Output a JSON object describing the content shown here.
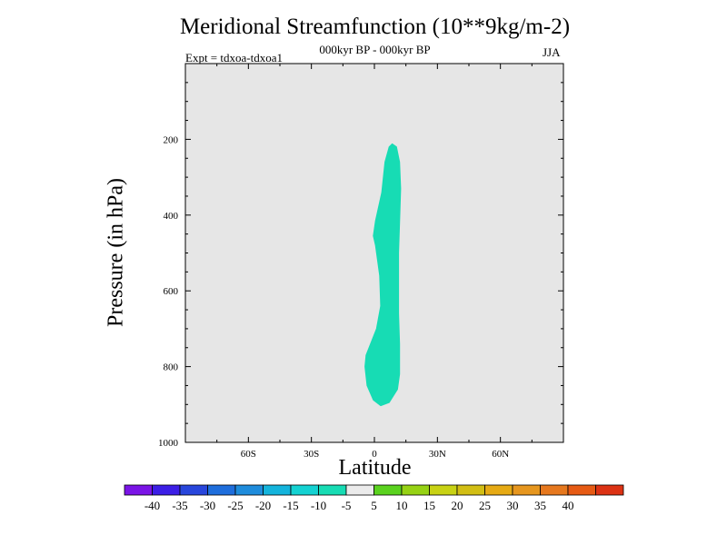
{
  "chart_data": {
    "type": "contour",
    "title": "Meridional Streamfunction (10**9kg/m-2)",
    "subtitle": "000kyr BP - 000kyr BP",
    "experiment_label": "Expt = tdxoa-tdxoa1",
    "season": "JJA",
    "xlabel": "Latitude",
    "ylabel": "Pressure (in hPa)",
    "x_range": [
      -90,
      90
    ],
    "y_range": [
      1000,
      0
    ],
    "y_inverted": true,
    "x_ticks": [
      {
        "value": -60,
        "label": "60S"
      },
      {
        "value": -30,
        "label": "30S"
      },
      {
        "value": 0,
        "label": "0"
      },
      {
        "value": 30,
        "label": "30N"
      },
      {
        "value": 60,
        "label": "60N"
      }
    ],
    "y_ticks": [
      {
        "value": 200,
        "label": "200"
      },
      {
        "value": 400,
        "label": "400"
      },
      {
        "value": 600,
        "label": "600"
      },
      {
        "value": 800,
        "label": "800"
      },
      {
        "value": 1000,
        "label": "1000"
      }
    ],
    "background_color": "#e6e6e6",
    "filled_region": {
      "level_range": [
        -10,
        -5
      ],
      "color": "#17dcb4",
      "outline": [
        {
          "lat": 8.5,
          "p": 212
        },
        {
          "lat": 10.5,
          "p": 220
        },
        {
          "lat": 12,
          "p": 260
        },
        {
          "lat": 12.5,
          "p": 330
        },
        {
          "lat": 12,
          "p": 420
        },
        {
          "lat": 11.5,
          "p": 500
        },
        {
          "lat": 11.5,
          "p": 580
        },
        {
          "lat": 11.5,
          "p": 660
        },
        {
          "lat": 12,
          "p": 740
        },
        {
          "lat": 12,
          "p": 820
        },
        {
          "lat": 11,
          "p": 860
        },
        {
          "lat": 7,
          "p": 895
        },
        {
          "lat": 3,
          "p": 903
        },
        {
          "lat": -0.5,
          "p": 888
        },
        {
          "lat": -3.5,
          "p": 850
        },
        {
          "lat": -4.5,
          "p": 800
        },
        {
          "lat": -4,
          "p": 770
        },
        {
          "lat": 1,
          "p": 700
        },
        {
          "lat": 3,
          "p": 640
        },
        {
          "lat": 2.5,
          "p": 560
        },
        {
          "lat": 0.5,
          "p": 480
        },
        {
          "lat": -0.5,
          "p": 455
        },
        {
          "lat": 0.5,
          "p": 415
        },
        {
          "lat": 3.5,
          "p": 340
        },
        {
          "lat": 5,
          "p": 260
        },
        {
          "lat": 7,
          "p": 220
        }
      ]
    },
    "colorbar": {
      "colors": [
        "#7a14e6",
        "#3c1ee6",
        "#2846dc",
        "#1e6edc",
        "#1e8cdc",
        "#14b4dc",
        "#14d2d2",
        "#17dcb4",
        "#ebebeb",
        "#5ad21e",
        "#96d214",
        "#c8d214",
        "#d2be14",
        "#e6aa14",
        "#e6961e",
        "#e6781e",
        "#e65a14",
        "#dc3214"
      ],
      "labels": [
        "-40",
        "-35",
        "-30",
        "-25",
        "-20",
        "-15",
        "-10",
        "-5",
        "5",
        "10",
        "15",
        "20",
        "25",
        "30",
        "35",
        "40"
      ]
    }
  }
}
